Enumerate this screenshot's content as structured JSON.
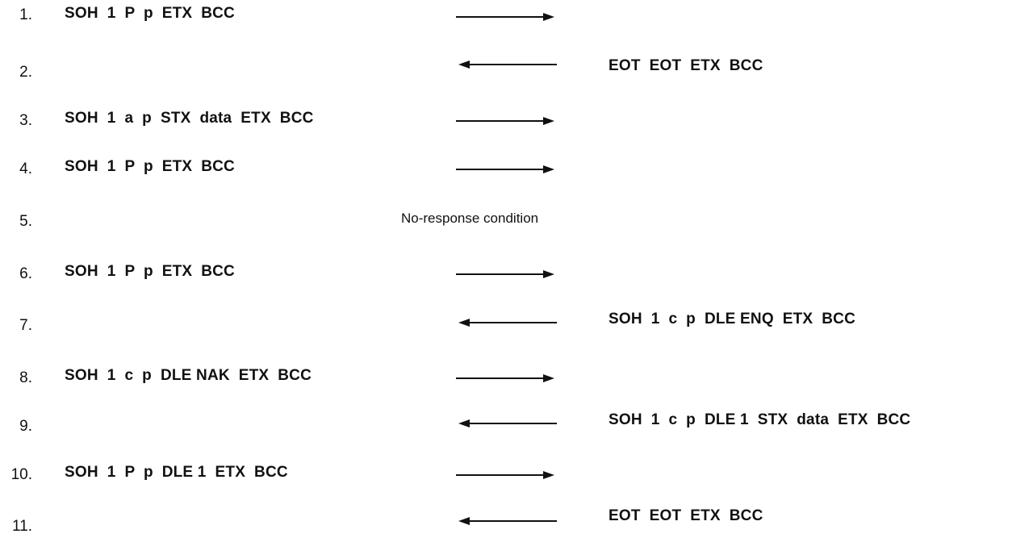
{
  "steps": [
    {
      "number": "1.",
      "left": "SOH  1  P  p  ETX  BCC",
      "direction": "right",
      "right": "",
      "note": ""
    },
    {
      "number": "2.",
      "left": "",
      "direction": "left",
      "right": "EOT  EOT  ETX  BCC",
      "note": ""
    },
    {
      "number": "3.",
      "left": "SOH  1  a  p  STX  data  ETX  BCC",
      "direction": "right",
      "right": "",
      "note": ""
    },
    {
      "number": "4.",
      "left": "SOH  1  P  p  ETX  BCC",
      "direction": "right",
      "right": "",
      "note": ""
    },
    {
      "number": "5.",
      "left": "",
      "direction": "none",
      "right": "",
      "note": "No-response condition"
    },
    {
      "number": "6.",
      "left": "SOH  1  P  p  ETX  BCC",
      "direction": "right",
      "right": "",
      "note": ""
    },
    {
      "number": "7.",
      "left": "",
      "direction": "left",
      "right": "SOH  1  c  p  DLE ENQ  ETX  BCC",
      "note": ""
    },
    {
      "number": "8.",
      "left": "SOH  1  c  p  DLE NAK  ETX  BCC",
      "direction": "right",
      "right": "",
      "note": ""
    },
    {
      "number": "9.",
      "left": "",
      "direction": "left",
      "right": "SOH  1  c  p  DLE 1  STX  data  ETX  BCC",
      "note": ""
    },
    {
      "number": "10.",
      "left": "SOH  1  P  p  DLE 1  ETX  BCC",
      "direction": "right",
      "right": "",
      "note": ""
    },
    {
      "number": "11.",
      "left": "",
      "direction": "left",
      "right": "EOT  EOT  ETX  BCC",
      "note": ""
    }
  ]
}
